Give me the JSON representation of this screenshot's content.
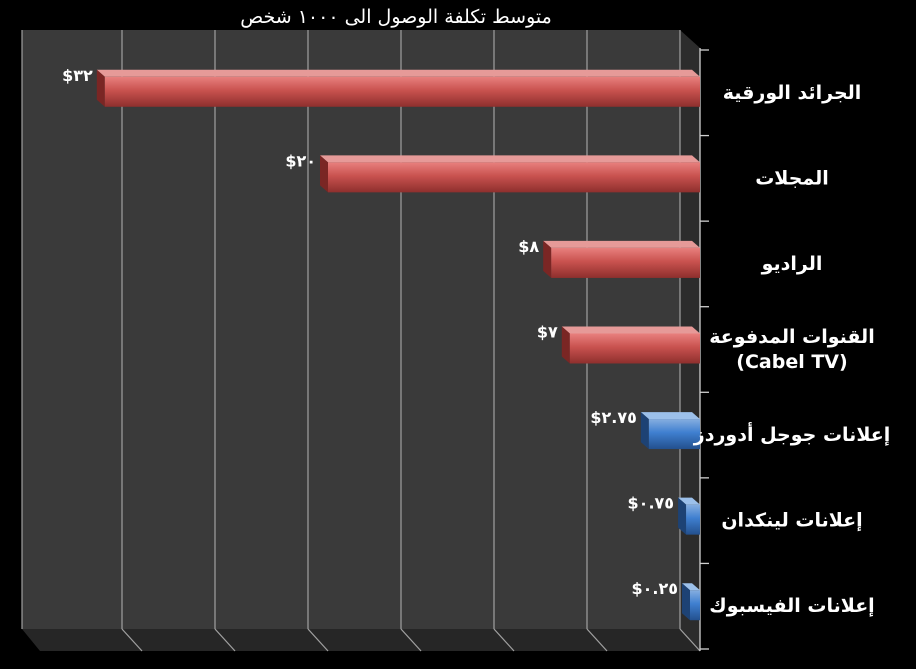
{
  "chart_data": {
    "type": "bar",
    "orientation": "horizontal",
    "title": "متوسط تكلفة الوصول الى ١٠٠٠ شخص",
    "xlabel": "",
    "ylabel": "",
    "xlim": [
      0,
      32
    ],
    "grid": true,
    "legend": "none",
    "categories": [
      "الجرائد الورقية",
      "المجلات",
      "الراديو",
      "القنوات المدفوعة (Cabel TV)",
      "إعلانات جوجل أدوردز",
      "إعلانات لينكدان",
      "إعلانات الفيسبوك"
    ],
    "category_lines": [
      [
        "الجرائد الورقية"
      ],
      [
        "المجلات"
      ],
      [
        "الراديو"
      ],
      [
        "القنوات المدفوعة",
        "(Cabel TV)"
      ],
      [
        "إعلانات جوجل أدوردز"
      ],
      [
        "إعلانات لينكدان"
      ],
      [
        "إعلانات الفيسبوك"
      ]
    ],
    "values": [
      32,
      20,
      8,
      7,
      2.75,
      0.75,
      0.25
    ],
    "data_labels": [
      "$٣٢",
      "$٢٠",
      "$٨",
      "$٧",
      "$٢.٧٥",
      "$٠.٧٥",
      "$٠.٢٥"
    ],
    "bar_colors": [
      "#c0504d",
      "#c0504d",
      "#c0504d",
      "#c0504d",
      "#4f81bd",
      "#4f81bd",
      "#4f81bd"
    ]
  }
}
